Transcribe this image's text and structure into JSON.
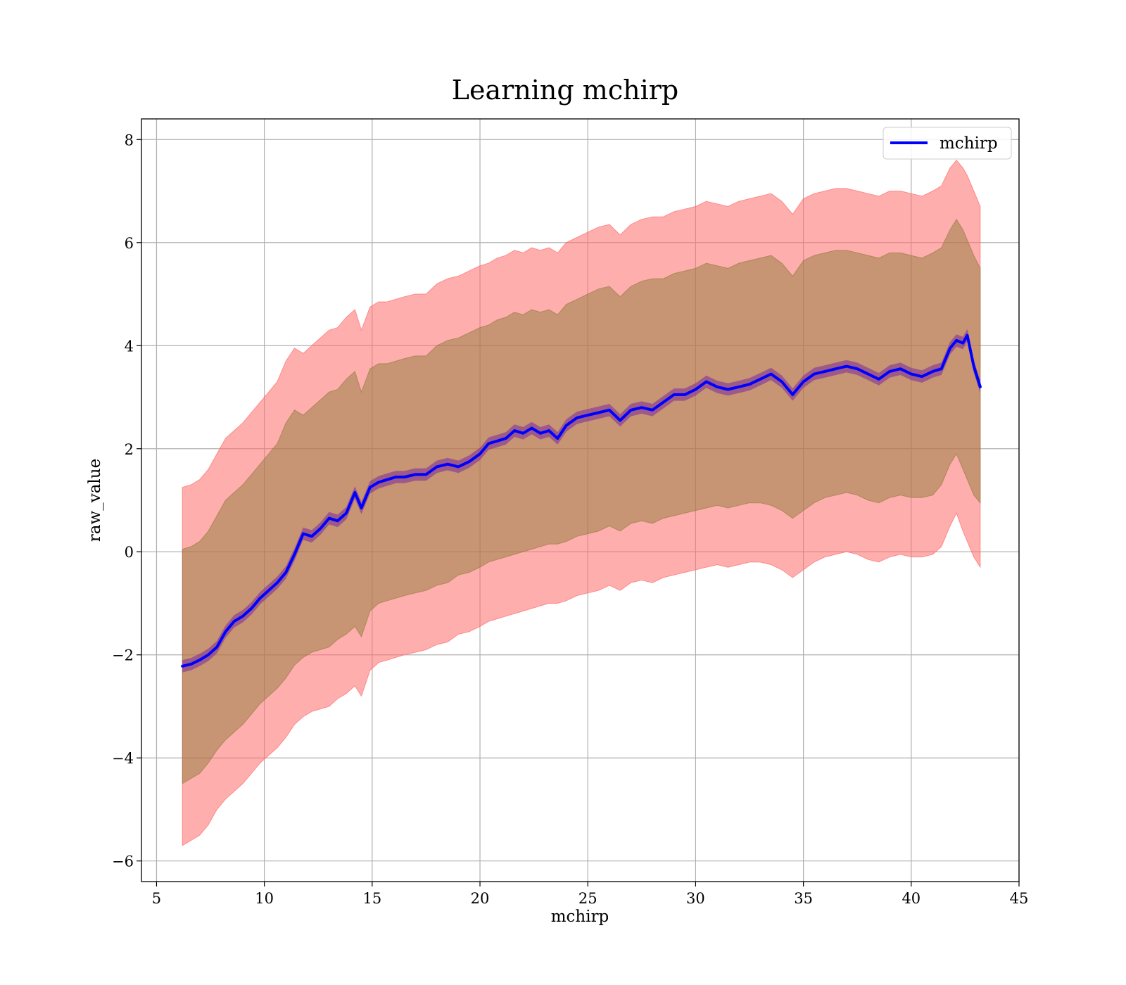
{
  "chart_data": {
    "type": "line",
    "title": "Learning mchirp",
    "xlabel": "mchirp",
    "ylabel": "raw_value",
    "xlim": [
      4.3,
      45
    ],
    "ylim": [
      -6.4,
      8.4
    ],
    "x_ticks": [
      5,
      10,
      15,
      20,
      25,
      30,
      35,
      40,
      45
    ],
    "x_tick_labels": [
      "5",
      "10",
      "15",
      "20",
      "25",
      "30",
      "35",
      "40",
      "45"
    ],
    "y_ticks": [
      -6,
      -4,
      -2,
      0,
      2,
      4,
      6,
      8
    ],
    "y_tick_labels": [
      "−6",
      "−4",
      "−2",
      "0",
      "2",
      "4",
      "6",
      "8"
    ],
    "grid": true,
    "legend": {
      "position": "top-right",
      "entries": [
        "mchirp"
      ]
    },
    "colors": {
      "line": "#0000ff",
      "band_outer": "#ff6b6b",
      "band_inner": "#8f7a3a",
      "band_mean": "#7a2a9a",
      "grid": "#b0b0b0"
    },
    "x": [
      6.2,
      6.6,
      7.0,
      7.4,
      7.8,
      8.2,
      8.6,
      9.0,
      9.4,
      9.8,
      10.2,
      10.6,
      11.0,
      11.4,
      11.8,
      12.2,
      12.6,
      13.0,
      13.4,
      13.8,
      14.2,
      14.5,
      14.9,
      15.3,
      15.7,
      16.1,
      16.5,
      17.0,
      17.5,
      18.0,
      18.5,
      19.0,
      19.5,
      20.0,
      20.4,
      20.8,
      21.2,
      21.6,
      22.0,
      22.4,
      22.8,
      23.2,
      23.6,
      24.0,
      24.5,
      25.0,
      25.5,
      26.0,
      26.5,
      27.0,
      27.5,
      28.0,
      28.5,
      29.0,
      29.5,
      30.0,
      30.5,
      31.0,
      31.5,
      32.0,
      32.5,
      33.0,
      33.5,
      34.0,
      34.5,
      35.0,
      35.5,
      36.0,
      36.5,
      37.0,
      37.5,
      38.0,
      38.5,
      39.0,
      39.5,
      40.0,
      40.5,
      41.0,
      41.4,
      41.8,
      42.1,
      42.4,
      42.6,
      42.9,
      43.2
    ],
    "series": [
      {
        "name": "mchirp",
        "values": [
          -2.22,
          -2.18,
          -2.1,
          -2.0,
          -1.85,
          -1.55,
          -1.35,
          -1.25,
          -1.1,
          -0.9,
          -0.75,
          -0.6,
          -0.4,
          -0.05,
          0.35,
          0.3,
          0.45,
          0.65,
          0.6,
          0.75,
          1.15,
          0.85,
          1.25,
          1.35,
          1.4,
          1.45,
          1.45,
          1.5,
          1.5,
          1.65,
          1.7,
          1.65,
          1.75,
          1.9,
          2.1,
          2.15,
          2.2,
          2.35,
          2.3,
          2.4,
          2.3,
          2.35,
          2.2,
          2.45,
          2.6,
          2.65,
          2.7,
          2.75,
          2.55,
          2.75,
          2.8,
          2.75,
          2.9,
          3.05,
          3.05,
          3.15,
          3.3,
          3.2,
          3.15,
          3.2,
          3.25,
          3.35,
          3.45,
          3.3,
          3.05,
          3.3,
          3.45,
          3.5,
          3.55,
          3.6,
          3.55,
          3.45,
          3.35,
          3.5,
          3.55,
          3.45,
          3.4,
          3.5,
          3.55,
          3.95,
          4.1,
          4.05,
          4.2,
          3.6,
          3.2
        ],
        "lower_outer": [
          -5.7,
          -5.6,
          -5.5,
          -5.3,
          -5.0,
          -4.8,
          -4.65,
          -4.5,
          -4.3,
          -4.1,
          -3.95,
          -3.8,
          -3.6,
          -3.35,
          -3.2,
          -3.1,
          -3.05,
          -3.0,
          -2.85,
          -2.75,
          -2.6,
          -2.8,
          -2.3,
          -2.15,
          -2.1,
          -2.05,
          -2.0,
          -1.95,
          -1.9,
          -1.8,
          -1.75,
          -1.6,
          -1.55,
          -1.45,
          -1.35,
          -1.3,
          -1.25,
          -1.2,
          -1.15,
          -1.1,
          -1.05,
          -1.0,
          -1.0,
          -0.95,
          -0.85,
          -0.8,
          -0.75,
          -0.65,
          -0.75,
          -0.6,
          -0.55,
          -0.6,
          -0.5,
          -0.45,
          -0.4,
          -0.35,
          -0.3,
          -0.25,
          -0.3,
          -0.25,
          -0.2,
          -0.2,
          -0.25,
          -0.35,
          -0.5,
          -0.35,
          -0.2,
          -0.1,
          -0.05,
          0.0,
          -0.05,
          -0.15,
          -0.2,
          -0.1,
          -0.05,
          -0.1,
          -0.1,
          -0.05,
          0.1,
          0.5,
          0.75,
          0.4,
          0.2,
          -0.1,
          -0.3
        ],
        "upper_outer": [
          1.25,
          1.3,
          1.4,
          1.6,
          1.9,
          2.2,
          2.35,
          2.5,
          2.7,
          2.9,
          3.1,
          3.3,
          3.7,
          3.95,
          3.85,
          4.0,
          4.15,
          4.3,
          4.35,
          4.55,
          4.7,
          4.3,
          4.75,
          4.85,
          4.85,
          4.9,
          4.95,
          5.0,
          5.0,
          5.2,
          5.3,
          5.35,
          5.45,
          5.55,
          5.6,
          5.7,
          5.75,
          5.85,
          5.8,
          5.9,
          5.85,
          5.9,
          5.8,
          6.0,
          6.1,
          6.2,
          6.3,
          6.35,
          6.15,
          6.35,
          6.45,
          6.5,
          6.5,
          6.6,
          6.65,
          6.7,
          6.8,
          6.75,
          6.7,
          6.8,
          6.85,
          6.9,
          6.95,
          6.8,
          6.55,
          6.85,
          6.95,
          7.0,
          7.05,
          7.05,
          7.0,
          6.95,
          6.9,
          7.0,
          7.0,
          6.95,
          6.9,
          7.0,
          7.1,
          7.45,
          7.6,
          7.45,
          7.3,
          7.0,
          6.7
        ],
        "lower_inner": [
          -4.5,
          -4.4,
          -4.3,
          -4.1,
          -3.85,
          -3.65,
          -3.5,
          -3.35,
          -3.15,
          -2.95,
          -2.8,
          -2.65,
          -2.45,
          -2.2,
          -2.05,
          -1.95,
          -1.9,
          -1.85,
          -1.7,
          -1.6,
          -1.45,
          -1.65,
          -1.15,
          -1.0,
          -0.95,
          -0.9,
          -0.85,
          -0.8,
          -0.75,
          -0.65,
          -0.6,
          -0.45,
          -0.4,
          -0.3,
          -0.2,
          -0.15,
          -0.1,
          -0.05,
          0.0,
          0.05,
          0.1,
          0.15,
          0.15,
          0.2,
          0.3,
          0.35,
          0.4,
          0.5,
          0.4,
          0.55,
          0.6,
          0.55,
          0.65,
          0.7,
          0.75,
          0.8,
          0.85,
          0.9,
          0.85,
          0.9,
          0.95,
          0.95,
          0.9,
          0.8,
          0.65,
          0.8,
          0.95,
          1.05,
          1.1,
          1.15,
          1.1,
          1.0,
          0.95,
          1.05,
          1.1,
          1.05,
          1.05,
          1.1,
          1.3,
          1.7,
          1.9,
          1.6,
          1.4,
          1.1,
          0.95
        ],
        "upper_inner": [
          0.05,
          0.1,
          0.2,
          0.4,
          0.7,
          1.0,
          1.15,
          1.3,
          1.5,
          1.7,
          1.9,
          2.1,
          2.5,
          2.75,
          2.65,
          2.8,
          2.95,
          3.1,
          3.15,
          3.35,
          3.5,
          3.1,
          3.55,
          3.65,
          3.65,
          3.7,
          3.75,
          3.8,
          3.8,
          4.0,
          4.1,
          4.15,
          4.25,
          4.35,
          4.4,
          4.5,
          4.55,
          4.65,
          4.6,
          4.7,
          4.65,
          4.7,
          4.6,
          4.8,
          4.9,
          5.0,
          5.1,
          5.15,
          4.95,
          5.15,
          5.25,
          5.3,
          5.3,
          5.4,
          5.45,
          5.5,
          5.6,
          5.55,
          5.5,
          5.6,
          5.65,
          5.7,
          5.75,
          5.6,
          5.35,
          5.65,
          5.75,
          5.8,
          5.85,
          5.85,
          5.8,
          5.75,
          5.7,
          5.8,
          5.8,
          5.75,
          5.7,
          5.8,
          5.9,
          6.25,
          6.45,
          6.25,
          6.05,
          5.75,
          5.5
        ]
      }
    ]
  }
}
